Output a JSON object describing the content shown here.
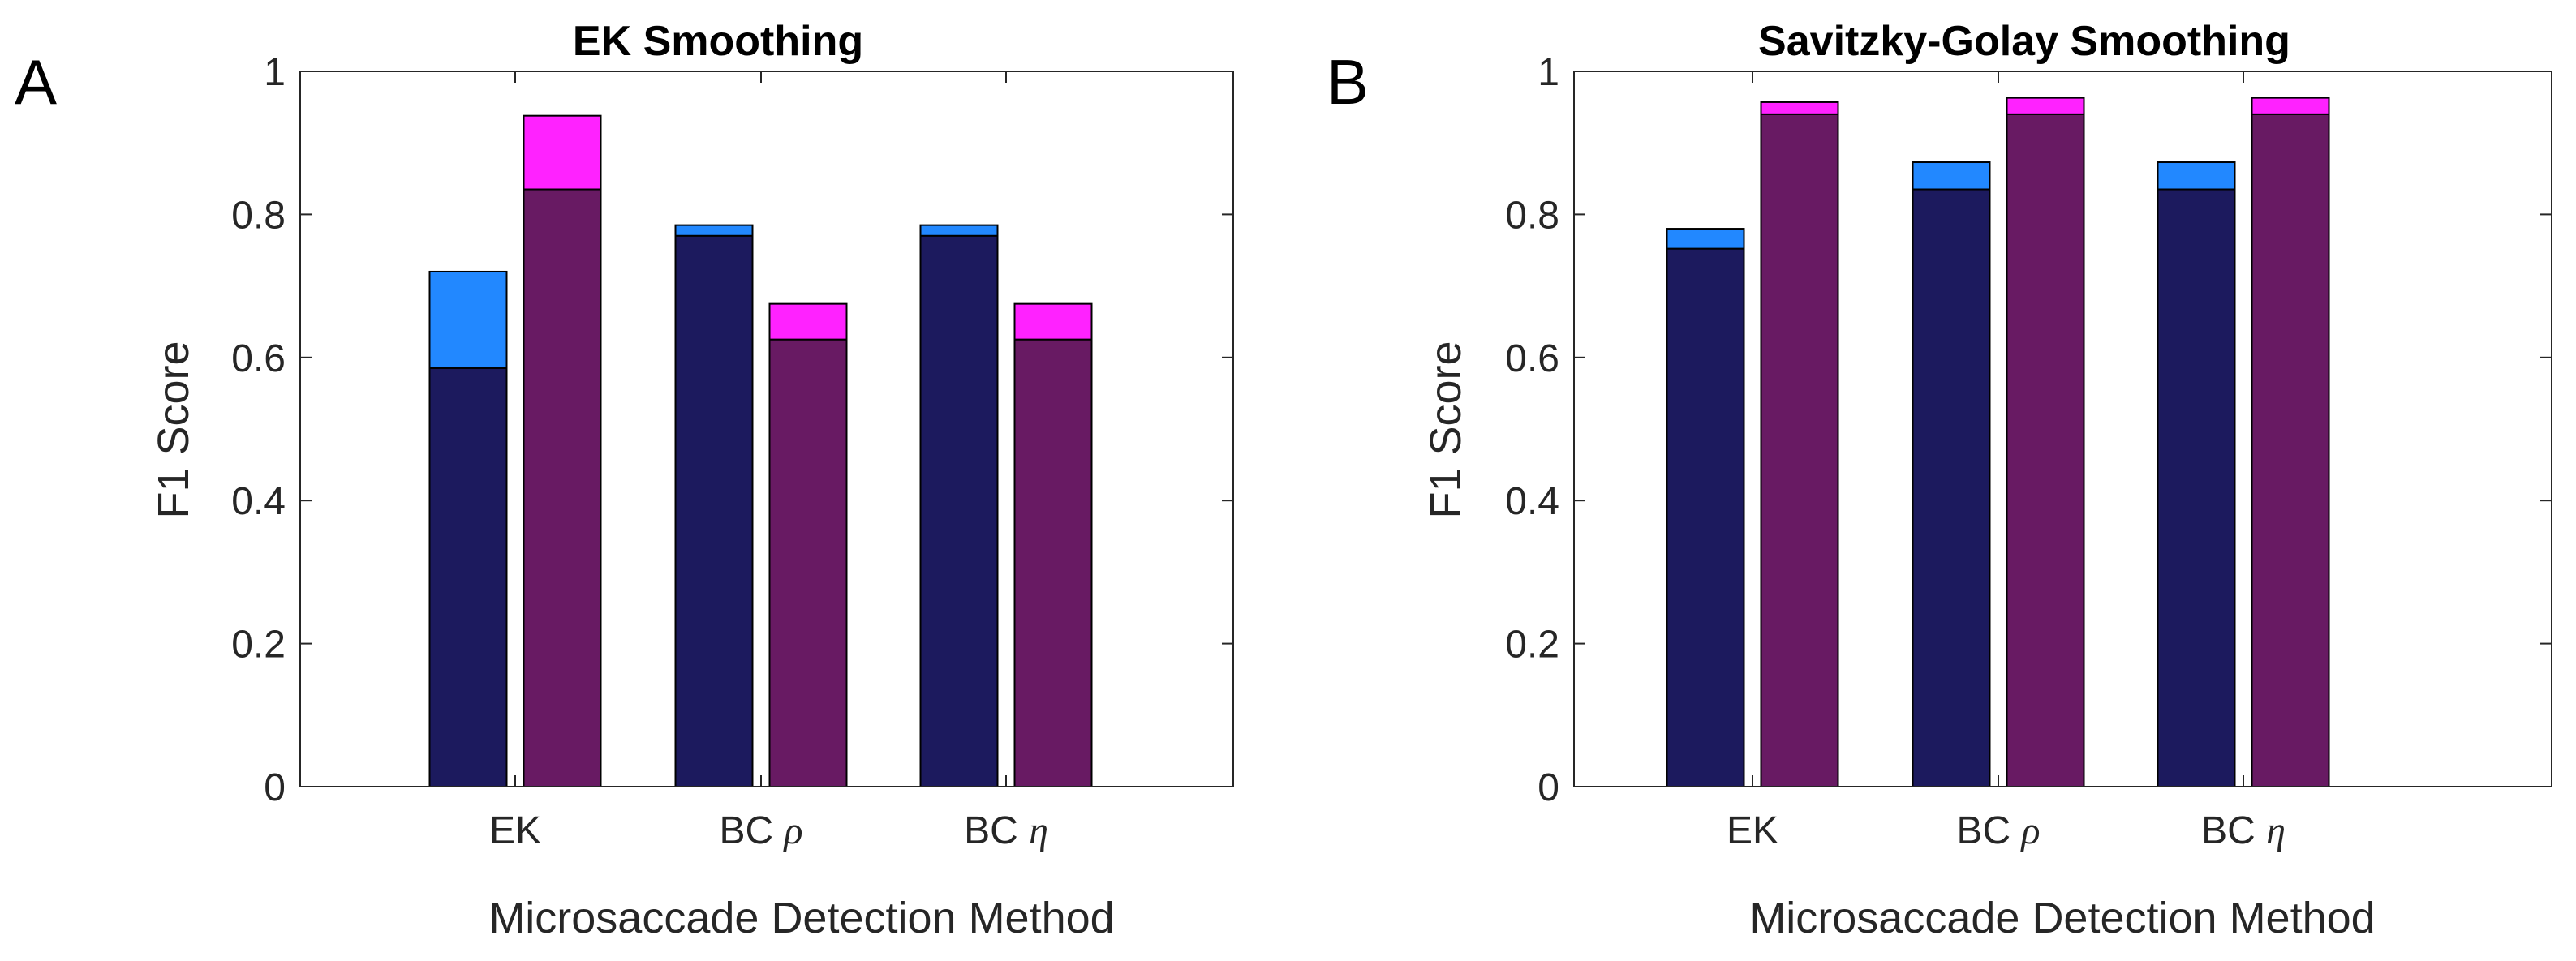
{
  "colors": {
    "blue_base": "#1c1a5e",
    "blue_top": "#2288ff",
    "purple_base": "#681a63",
    "magenta_top": "#ff22ff",
    "axis": "#262626",
    "bar_edge": "#000000"
  },
  "chart_data": [
    {
      "type": "bar",
      "panel_letter": "A",
      "title": "EK Smoothing",
      "xlabel": "Microsaccade Detection Method",
      "ylabel": "F1 Score",
      "ylim": [
        0,
        1
      ],
      "yticks": [
        "0",
        "0.2",
        "0.4",
        "0.6",
        "0.8",
        "1"
      ],
      "categories": [
        {
          "prefix": "EK",
          "symbol": ""
        },
        {
          "prefix": "BC ",
          "symbol": "ρ"
        },
        {
          "prefix": "BC ",
          "symbol": "η"
        }
      ],
      "grid": false,
      "stacked_overlay": true,
      "series": [
        {
          "base": [
            0.585,
            0.77,
            0.77
          ],
          "total": [
            0.72,
            0.785,
            0.785
          ],
          "base_color": "#1c1a5e",
          "top_color": "#2288ff"
        },
        {
          "base": [
            0.835,
            0.625,
            0.625
          ],
          "total": [
            0.938,
            0.675,
            0.675
          ],
          "base_color": "#681a63",
          "top_color": "#ff22ff"
        }
      ]
    },
    {
      "type": "bar",
      "panel_letter": "B",
      "title": "Savitzky-Golay Smoothing",
      "xlabel": "Microsaccade Detection Method",
      "ylabel": "F1 Score",
      "ylim": [
        0,
        1
      ],
      "yticks": [
        "0",
        "0.2",
        "0.4",
        "0.6",
        "0.8",
        "1"
      ],
      "categories": [
        {
          "prefix": "EK",
          "symbol": ""
        },
        {
          "prefix": "BC ",
          "symbol": "ρ"
        },
        {
          "prefix": "BC ",
          "symbol": "η"
        }
      ],
      "grid": false,
      "stacked_overlay": true,
      "series": [
        {
          "base": [
            0.752,
            0.835,
            0.835
          ],
          "total": [
            0.78,
            0.873,
            0.873
          ],
          "base_color": "#1c1a5e",
          "top_color": "#2288ff"
        },
        {
          "base": [
            0.94,
            0.94,
            0.94
          ],
          "total": [
            0.957,
            0.963,
            0.963
          ],
          "base_color": "#681a63",
          "top_color": "#ff22ff"
        }
      ]
    }
  ]
}
